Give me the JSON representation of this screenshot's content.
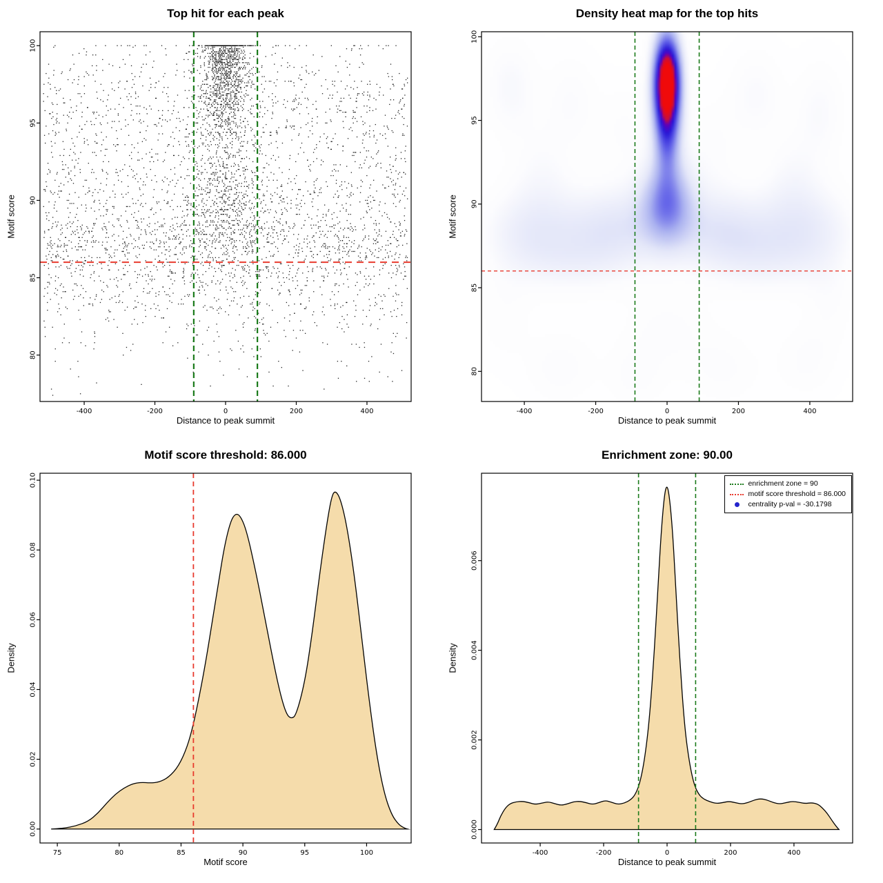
{
  "figure": {
    "background": "#ffffff",
    "colors": {
      "green": "#1a7a1a",
      "red": "#e8392c",
      "blue": "#2424cc",
      "fill": "#f5dcab",
      "stroke": "#000000",
      "point": "#000000"
    }
  },
  "chart_data": [
    {
      "type": "scatter",
      "title": "Top hit for each peak",
      "xlabel": "Distance to peak summit",
      "ylabel": "Motif score",
      "xlim": [
        -525,
        525
      ],
      "ylim": [
        77,
        100.9
      ],
      "xticks": [
        -400,
        -200,
        0,
        200,
        400
      ],
      "yticks": [
        80,
        85,
        90,
        95,
        100
      ],
      "seed": 20240601,
      "y_quant": 0.1,
      "clusters": [
        {
          "n": 800,
          "x": {
            "dist": "normal",
            "mean": 0,
            "sd": 38
          },
          "y": {
            "dist": "normal",
            "mean": 97.2,
            "sd": 2.0
          }
        },
        {
          "n": 450,
          "x": {
            "dist": "normal",
            "mean": 0,
            "sd": 30
          },
          "y": {
            "dist": "normal",
            "mean": 99.3,
            "sd": 1.0
          }
        },
        {
          "n": 500,
          "x": {
            "dist": "normal",
            "mean": 0,
            "sd": 55
          },
          "y": {
            "dist": "normal",
            "mean": 89.8,
            "sd": 2.2
          }
        },
        {
          "n": 1500,
          "x": {
            "dist": "uniform",
            "min": -515,
            "max": 515
          },
          "y": {
            "dist": "normal",
            "mean": 89.2,
            "sd": 3.0
          }
        },
        {
          "n": 800,
          "x": {
            "dist": "uniform",
            "min": -515,
            "max": 515
          },
          "y": {
            "dist": "normal",
            "mean": 96.3,
            "sd": 2.2
          }
        },
        {
          "n": 1000,
          "x": {
            "dist": "uniform",
            "min": -515,
            "max": 515
          },
          "y": {
            "dist": "halfnormal",
            "base": 88.5,
            "sd": 4.5
          }
        }
      ],
      "vlines": {
        "xs": [
          -90,
          90
        ],
        "color_key": "green",
        "dash": [
          8,
          5
        ],
        "width": 2.2
      },
      "hlines": {
        "ys": [
          86
        ],
        "color_key": "red",
        "dash": [
          10,
          7
        ],
        "width": 2
      }
    },
    {
      "type": "heatmap",
      "title": "Density heat map for the top hits",
      "xlabel": "Distance to peak summit",
      "ylabel": "Motif score",
      "xlim": [
        -520,
        520
      ],
      "ylim": [
        78.2,
        100.3
      ],
      "xticks": [
        -400,
        -200,
        0,
        200,
        400
      ],
      "yticks": [
        80,
        85,
        90,
        95,
        100
      ],
      "blobs": [
        {
          "x": 0,
          "y": 97.3,
          "sx": 27,
          "sy": 2.0,
          "a": 1.15
        },
        {
          "x": 0,
          "y": 93.8,
          "sx": 26,
          "sy": 1.7,
          "a": 0.32
        },
        {
          "x": 0,
          "y": 90.2,
          "sx": 48,
          "sy": 1.7,
          "a": 0.4
        },
        {
          "x": -140,
          "y": 88.8,
          "sx": 110,
          "sy": 1.7,
          "a": 0.17
        },
        {
          "x": 150,
          "y": 88.6,
          "sx": 110,
          "sy": 1.7,
          "a": 0.17
        },
        {
          "x": -390,
          "y": 88.4,
          "sx": 95,
          "sy": 1.9,
          "a": 0.14
        },
        {
          "x": 400,
          "y": 88.6,
          "sx": 95,
          "sy": 1.9,
          "a": 0.14
        },
        {
          "x": -240,
          "y": 86.6,
          "sx": 120,
          "sy": 1.5,
          "a": 0.09
        },
        {
          "x": 260,
          "y": 86.7,
          "sx": 120,
          "sy": 1.5,
          "a": 0.09
        },
        {
          "x": -440,
          "y": 97.0,
          "sx": 55,
          "sy": 2.2,
          "a": 0.09
        },
        {
          "x": -270,
          "y": 96.2,
          "sx": 50,
          "sy": 2.0,
          "a": 0.07
        },
        {
          "x": 250,
          "y": 96.6,
          "sx": 55,
          "sy": 2.0,
          "a": 0.08
        },
        {
          "x": 430,
          "y": 95.6,
          "sx": 50,
          "sy": 2.2,
          "a": 0.08
        },
        {
          "x": -350,
          "y": 92.2,
          "sx": 60,
          "sy": 2.0,
          "a": 0.06
        },
        {
          "x": 350,
          "y": 91.8,
          "sx": 55,
          "sy": 2.0,
          "a": 0.06
        },
        {
          "x": -120,
          "y": 94.5,
          "sx": 60,
          "sy": 2.0,
          "a": 0.06
        },
        {
          "x": 120,
          "y": 93.5,
          "sx": 60,
          "sy": 2.0,
          "a": 0.06
        },
        {
          "x": 0,
          "y": 82.6,
          "sx": 90,
          "sy": 1.7,
          "a": 0.06
        },
        {
          "x": -300,
          "y": 80.2,
          "sx": 70,
          "sy": 1.6,
          "a": 0.07
        },
        {
          "x": -90,
          "y": 79.6,
          "sx": 60,
          "sy": 1.5,
          "a": 0.06
        },
        {
          "x": 160,
          "y": 80.1,
          "sx": 80,
          "sy": 1.6,
          "a": 0.06
        },
        {
          "x": 390,
          "y": 80.6,
          "sx": 60,
          "sy": 1.6,
          "a": 0.06
        },
        {
          "x": -460,
          "y": 83.2,
          "sx": 55,
          "sy": 1.9,
          "a": 0.05
        },
        {
          "x": 460,
          "y": 84.0,
          "sx": 50,
          "sy": 1.9,
          "a": 0.05
        }
      ],
      "vlines": {
        "xs": [
          -90,
          90
        ],
        "color_key": "green",
        "dash": [
          6,
          4
        ],
        "width": 1.6
      },
      "hlines": {
        "ys": [
          86
        ],
        "color_key": "red",
        "dash": [
          5,
          4
        ],
        "width": 1.3
      }
    },
    {
      "type": "density",
      "title": "Motif score threshold: 86.000",
      "xlabel": "Motif score",
      "ylabel": "Density",
      "xlim": [
        73.6,
        103.6
      ],
      "ylim": [
        -0.004,
        0.102
      ],
      "xticks": [
        75,
        80,
        85,
        90,
        95,
        100
      ],
      "yticks": [
        0,
        0.02,
        0.04,
        0.06,
        0.08,
        0.1
      ],
      "ytick_labels": [
        "0.00",
        "0.02",
        "0.04",
        "0.06",
        "0.08",
        "0.10"
      ],
      "vlines": {
        "xs": [
          86
        ],
        "color_key": "red",
        "dash": [
          7,
          5
        ],
        "width": 1.8
      },
      "curve": [
        [
          74.5,
          0
        ],
        [
          75.5,
          0.0002
        ],
        [
          76.5,
          0.0009
        ],
        [
          77.5,
          0.0022
        ],
        [
          78.3,
          0.0046
        ],
        [
          79,
          0.0075
        ],
        [
          79.7,
          0.01
        ],
        [
          80.4,
          0.0118
        ],
        [
          81.1,
          0.013
        ],
        [
          81.8,
          0.0134
        ],
        [
          82.5,
          0.0132
        ],
        [
          83.2,
          0.0134
        ],
        [
          84,
          0.0148
        ],
        [
          84.8,
          0.018
        ],
        [
          85.5,
          0.0235
        ],
        [
          86,
          0.03
        ],
        [
          86.5,
          0.0385
        ],
        [
          87,
          0.048
        ],
        [
          87.5,
          0.059
        ],
        [
          88,
          0.07
        ],
        [
          88.5,
          0.081
        ],
        [
          89,
          0.0882
        ],
        [
          89.4,
          0.0905
        ],
        [
          89.8,
          0.0898
        ],
        [
          90.3,
          0.0855
        ],
        [
          91,
          0.0745
        ],
        [
          91.7,
          0.062
        ],
        [
          92.4,
          0.049
        ],
        [
          93,
          0.039
        ],
        [
          93.5,
          0.033
        ],
        [
          93.9,
          0.0316
        ],
        [
          94.3,
          0.0326
        ],
        [
          95,
          0.042
        ],
        [
          95.6,
          0.056
        ],
        [
          96.2,
          0.073
        ],
        [
          96.8,
          0.088
        ],
        [
          97.2,
          0.0958
        ],
        [
          97.5,
          0.097
        ],
        [
          97.9,
          0.0945
        ],
        [
          98.4,
          0.087
        ],
        [
          99,
          0.073
        ],
        [
          99.6,
          0.055
        ],
        [
          100.2,
          0.037
        ],
        [
          100.8,
          0.0215
        ],
        [
          101.4,
          0.0105
        ],
        [
          102,
          0.0042
        ],
        [
          102.6,
          0.0012
        ],
        [
          103.1,
          0.0002
        ],
        [
          103.3,
          0
        ]
      ]
    },
    {
      "type": "density",
      "title": "Enrichment zone: 90.00",
      "xlabel": "Distance to peak summit",
      "ylabel": "Density",
      "xlim": [
        -585,
        585
      ],
      "ylim": [
        -0.0003,
        0.00795
      ],
      "xticks": [
        -400,
        -200,
        0,
        200,
        400
      ],
      "yticks": [
        0,
        0.002,
        0.004,
        0.006
      ],
      "ytick_labels": [
        "0.000",
        "0.002",
        "0.004",
        "0.006"
      ],
      "vlines": {
        "xs": [
          -90,
          90
        ],
        "color_key": "green",
        "dash": [
          6,
          4
        ],
        "width": 1.6
      },
      "curve": [
        [
          -545,
          0
        ],
        [
          -535,
          0.00012
        ],
        [
          -525,
          0.0003
        ],
        [
          -510,
          0.00048
        ],
        [
          -495,
          0.00058
        ],
        [
          -475,
          0.00062
        ],
        [
          -455,
          0.00063
        ],
        [
          -435,
          0.0006
        ],
        [
          -415,
          0.00056
        ],
        [
          -395,
          0.00059
        ],
        [
          -375,
          0.00062
        ],
        [
          -355,
          0.00058
        ],
        [
          -335,
          0.00054
        ],
        [
          -315,
          0.00057
        ],
        [
          -295,
          0.00062
        ],
        [
          -275,
          0.00063
        ],
        [
          -255,
          0.0006
        ],
        [
          -235,
          0.00056
        ],
        [
          -215,
          0.0006
        ],
        [
          -195,
          0.00065
        ],
        [
          -175,
          0.00061
        ],
        [
          -155,
          0.00056
        ],
        [
          -135,
          0.00059
        ],
        [
          -115,
          0.00066
        ],
        [
          -100,
          0.00078
        ],
        [
          -85,
          0.00105
        ],
        [
          -70,
          0.0016
        ],
        [
          -55,
          0.0025
        ],
        [
          -40,
          0.004
        ],
        [
          -28,
          0.0055
        ],
        [
          -18,
          0.0067
        ],
        [
          -8,
          0.0075
        ],
        [
          0,
          0.0077
        ],
        [
          8,
          0.0074
        ],
        [
          18,
          0.0066
        ],
        [
          28,
          0.0053
        ],
        [
          40,
          0.0038
        ],
        [
          55,
          0.0023
        ],
        [
          70,
          0.0015
        ],
        [
          85,
          0.001
        ],
        [
          100,
          0.00078
        ],
        [
          115,
          0.00068
        ],
        [
          135,
          0.00062
        ],
        [
          155,
          0.00058
        ],
        [
          175,
          0.0006
        ],
        [
          195,
          0.00063
        ],
        [
          215,
          0.0006
        ],
        [
          235,
          0.00057
        ],
        [
          255,
          0.0006
        ],
        [
          275,
          0.00066
        ],
        [
          295,
          0.00069
        ],
        [
          315,
          0.00066
        ],
        [
          335,
          0.0006
        ],
        [
          355,
          0.00057
        ],
        [
          375,
          0.0006
        ],
        [
          395,
          0.00063
        ],
        [
          415,
          0.00061
        ],
        [
          435,
          0.00058
        ],
        [
          455,
          0.0006
        ],
        [
          475,
          0.00057
        ],
        [
          490,
          0.00048
        ],
        [
          505,
          0.00036
        ],
        [
          520,
          0.0002
        ],
        [
          532,
          8e-05
        ],
        [
          542,
          0
        ]
      ],
      "legend": {
        "items": [
          {
            "label": "enrichment zone = 90",
            "sample": "dotted-line",
            "color_key": "green"
          },
          {
            "label": "motif score threshold = 86.000",
            "sample": "dotted-line",
            "color_key": "red"
          },
          {
            "label": "centrality p-val = -30.1798",
            "sample": "dot",
            "color_key": "blue"
          }
        ]
      }
    }
  ]
}
